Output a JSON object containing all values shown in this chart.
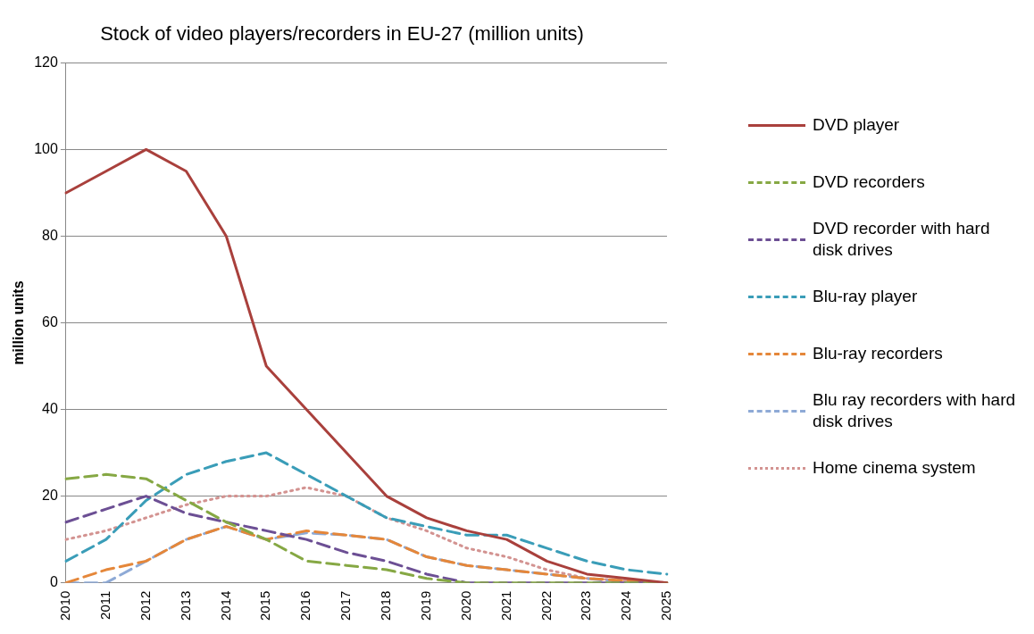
{
  "chart_data": {
    "type": "line",
    "title": "Stock of video players/recorders in EU-27 (million units)",
    "ylabel": "million units",
    "categories": [
      "2010",
      "2011",
      "2012",
      "2013",
      "2014",
      "2015",
      "2016",
      "2017",
      "2018",
      "2019",
      "2020",
      "2021",
      "2022",
      "2023",
      "2024",
      "2025"
    ],
    "ylim": [
      0,
      120
    ],
    "yticks": [
      0,
      20,
      40,
      60,
      80,
      100,
      120
    ],
    "grid": "y",
    "legend": "right",
    "marker": "none",
    "series": [
      {
        "name": "DVD player",
        "color": "#a9403c",
        "line_style": "solid",
        "values": [
          90,
          95,
          100,
          95,
          80,
          50,
          40,
          30,
          20,
          15,
          12,
          10,
          5,
          2,
          1,
          0
        ]
      },
      {
        "name": "DVD recorders",
        "color": "#86a844",
        "line_style": "dashed",
        "values": [
          24,
          25,
          24,
          19,
          14,
          10,
          5,
          4,
          3,
          1,
          0,
          0,
          0,
          0,
          0,
          0
        ]
      },
      {
        "name": "DVD recorder with hard disk drives",
        "color": "#6c4f94",
        "line_style": "dashed",
        "values": [
          14,
          17,
          20,
          16,
          14,
          12,
          10,
          7,
          5,
          2,
          0,
          0,
          0,
          0,
          0,
          0
        ]
      },
      {
        "name": "Blu-ray player",
        "color": "#3a9db8",
        "line_style": "dashed",
        "values": [
          5,
          10,
          19,
          25,
          28,
          30,
          25,
          20,
          15,
          13,
          11,
          11,
          8,
          5,
          3,
          2
        ]
      },
      {
        "name": "Blu-ray recorders",
        "color": "#e5873a",
        "line_style": "dashed",
        "values": [
          0,
          3,
          5,
          10,
          13,
          10,
          12,
          11,
          10,
          6,
          4,
          3,
          2,
          1,
          0.5,
          0
        ]
      },
      {
        "name": "Blu ray recorders with hard disk drives",
        "color": "#8eaad6",
        "line_style": "dashed",
        "values": [
          0,
          0,
          5,
          10,
          13,
          10,
          11.5,
          11,
          10,
          6,
          4,
          3,
          2,
          1,
          0,
          0
        ]
      },
      {
        "name": "Home cinema system",
        "color": "#d39391",
        "line_style": "dotted",
        "values": [
          10,
          12,
          15,
          18,
          20,
          20,
          22,
          20,
          15,
          12,
          8,
          6,
          3,
          1,
          0.5,
          0
        ]
      }
    ]
  }
}
